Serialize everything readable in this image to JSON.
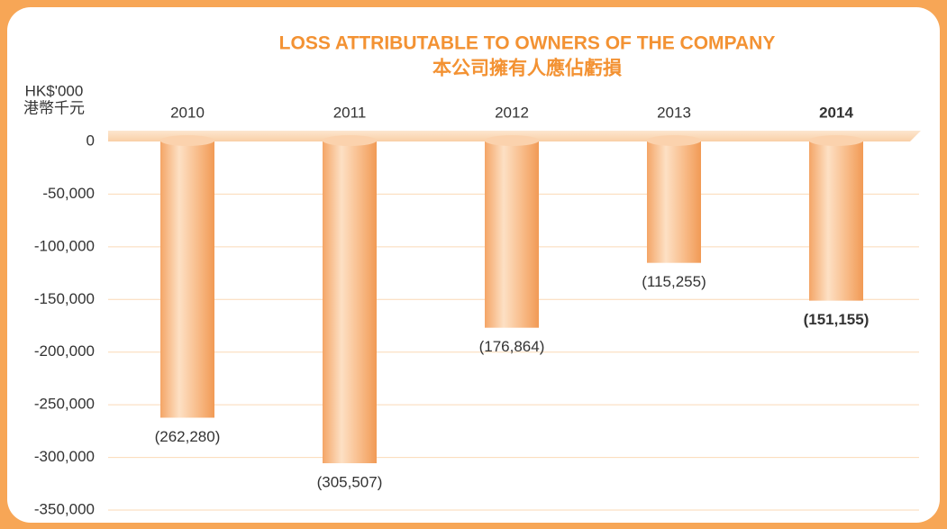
{
  "chart_data": {
    "type": "bar",
    "title": "LOSS ATTRIBUTABLE TO OWNERS OF THE COMPANY",
    "subtitle": "本公司擁有人應佔虧損",
    "y_label": [
      "HK$'000",
      "港幣千元"
    ],
    "categories": [
      "2010",
      "2011",
      "2012",
      "2013",
      "2014"
    ],
    "values": [
      -262280,
      -305507,
      -176864,
      -115255,
      -151155
    ],
    "value_labels": [
      "(262,280)",
      "(305,507)",
      "(176,864)",
      "(115,255)",
      "(151,155)"
    ],
    "highlight_index": 4,
    "color": "#f7b27a",
    "ylim": [
      -350000,
      0
    ],
    "yticks": [
      0,
      {
        "value": -50000,
        "label": "-50,000"
      },
      {
        "value": -100000,
        "label": "-100,000"
      },
      {
        "value": -150000,
        "label": "-150,000"
      },
      {
        "value": -200000,
        "label": "-200,000"
      },
      {
        "value": -250000,
        "label": "-250,000"
      },
      {
        "value": -300000,
        "label": "-300,000"
      },
      {
        "value": -350000,
        "label": "-350,000"
      }
    ],
    "grid": true
  }
}
